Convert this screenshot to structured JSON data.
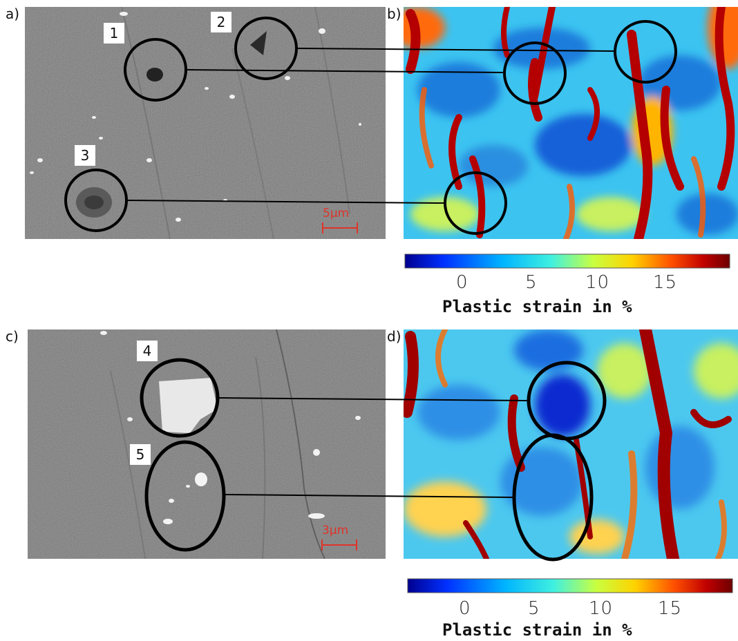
{
  "panels": [
    {
      "letter": "a)"
    },
    {
      "letter": "b)"
    },
    {
      "letter": "c)"
    },
    {
      "letter": "d)"
    }
  ],
  "markers": [
    "1",
    "2",
    "3",
    "4",
    "5"
  ],
  "scale_bars": [
    {
      "label": "5µm",
      "color": "#e0332a"
    },
    {
      "label": "3µm",
      "color": "#e0332a"
    }
  ],
  "colorbars": [
    {
      "ticks": [
        "0",
        "5",
        "10",
        "15"
      ],
      "label": "Plastic strain in %"
    },
    {
      "ticks": [
        "0",
        "5",
        "10",
        "15"
      ],
      "label": "Plastic strain in %"
    }
  ],
  "colors": {
    "colormap": [
      "#00008f",
      "#0050ff",
      "#00c8ff",
      "#8cff73",
      "#ffd200",
      "#ff5000",
      "#b00000",
      "#6e0000"
    ],
    "sem_gray": "#7c7c7c",
    "circle": "#000000"
  }
}
